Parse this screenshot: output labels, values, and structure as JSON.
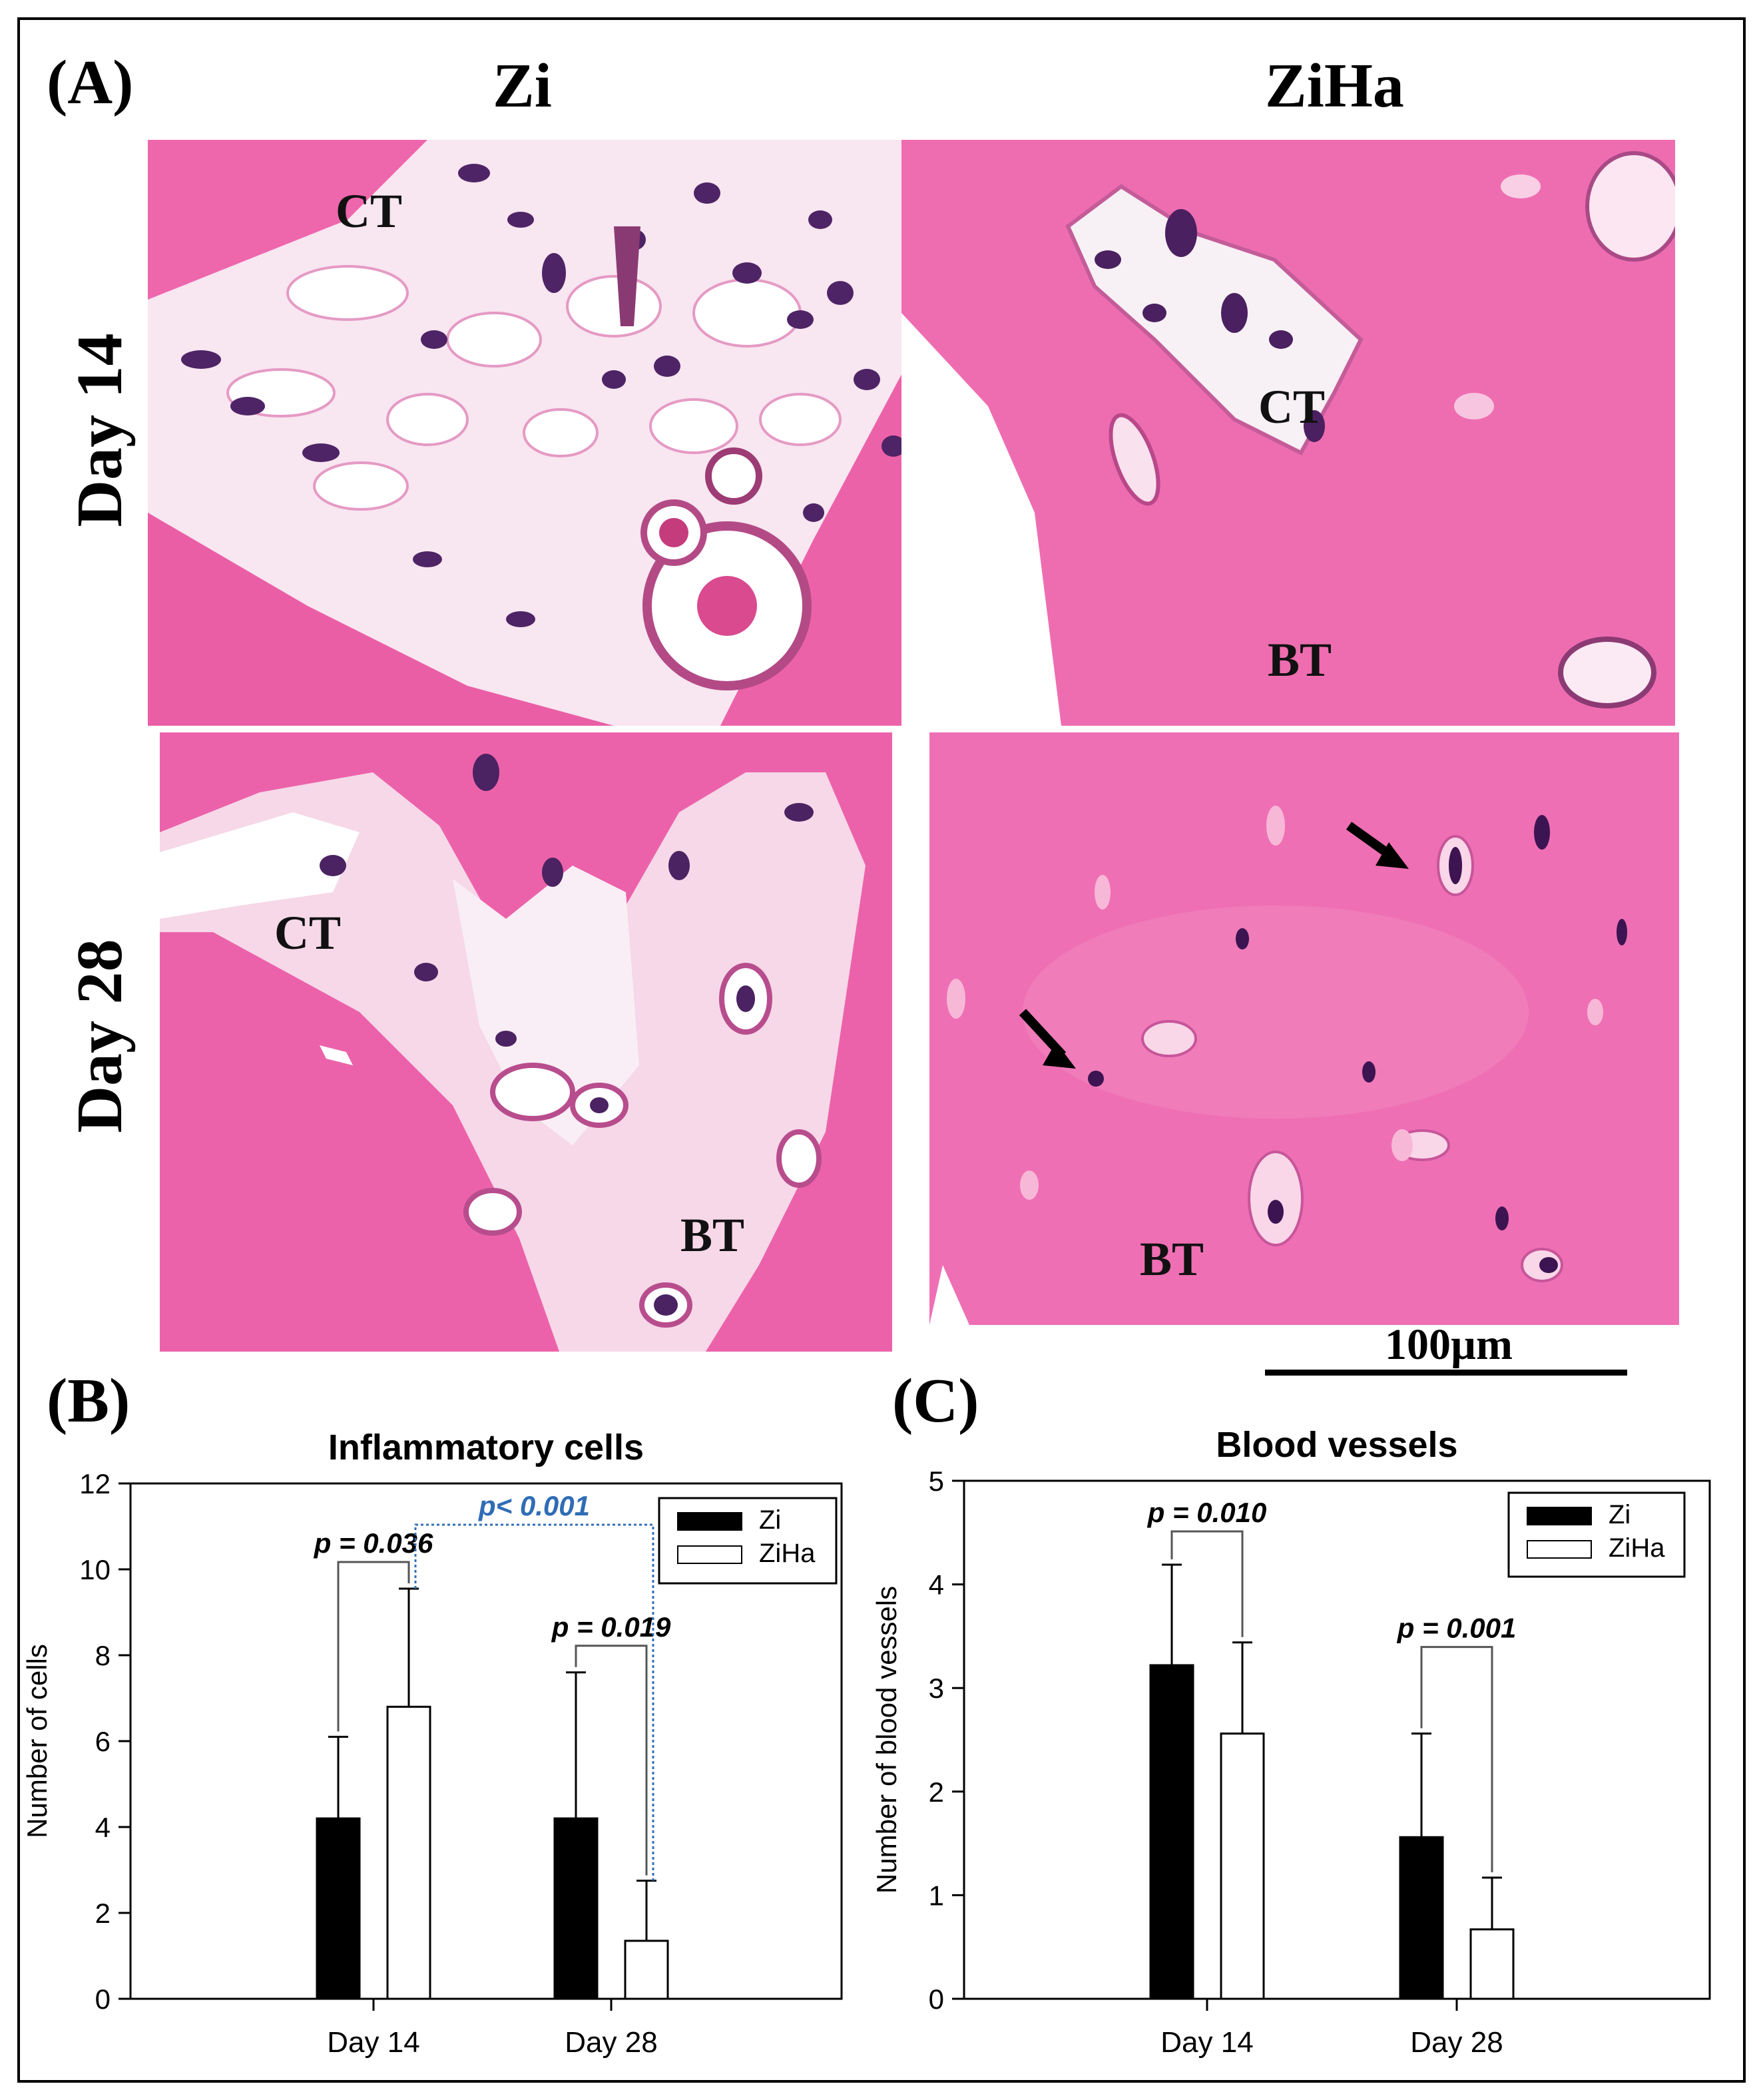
{
  "panel_labels": {
    "a": "(A)",
    "b": "(B)",
    "c": "(C)"
  },
  "columns": [
    "Zi",
    "ZiHa"
  ],
  "rows": [
    "Day 14",
    "Day 28"
  ],
  "micrographs": {
    "zi_day14": {
      "labels": [
        "CT"
      ]
    },
    "ziha_day14": {
      "labels": [
        "CT",
        "BT"
      ]
    },
    "zi_day28": {
      "labels": [
        "CT",
        "BT"
      ]
    },
    "ziha_day28": {
      "labels": [
        "BT"
      ]
    }
  },
  "scale_bar": "100µm",
  "colors": {
    "zi": "#000000",
    "ziha": "#ffffff",
    "tissue": "#ef6fb3",
    "nucleus": "#5b2a6e",
    "bracket": "#555555",
    "highlight": "#2f6db5"
  },
  "chart_data": [
    {
      "type": "bar",
      "title": "Inflammatory cells",
      "ylabel": "Number of cells",
      "xlabel": "",
      "categories": [
        "Day 14",
        "Day 28"
      ],
      "ylim": [
        0,
        12
      ],
      "yticks": [
        0,
        2,
        4,
        6,
        8,
        10,
        12
      ],
      "series": [
        {
          "name": "Zi",
          "values": [
            4.2,
            4.2
          ],
          "errors": [
            1.9,
            3.4
          ],
          "color": "#000000"
        },
        {
          "name": "ZiHa",
          "values": [
            6.8,
            1.35
          ],
          "errors": [
            2.75,
            1.4
          ],
          "color": "#ffffff"
        }
      ],
      "annotations": [
        {
          "text": "p = 0.036",
          "between": "Day 14 Zi vs Day 14 ZiHa"
        },
        {
          "text": "p = 0.019",
          "between": "Day 28 Zi vs Day 28 ZiHa"
        },
        {
          "text": "p< 0.001",
          "between": "Day 14 ZiHa vs Day 28 ZiHa",
          "color": "#2f6db5"
        }
      ],
      "legend": "top-right",
      "grid": false
    },
    {
      "type": "bar",
      "title": "Blood vessels",
      "ylabel": "Number of blood vessels",
      "xlabel": "",
      "categories": [
        "Day 14",
        "Day 28"
      ],
      "ylim": [
        0,
        5
      ],
      "yticks": [
        0,
        1,
        2,
        3,
        4,
        5
      ],
      "series": [
        {
          "name": "Zi",
          "values": [
            3.22,
            1.56
          ],
          "errors": [
            0.97,
            1.0
          ],
          "color": "#000000"
        },
        {
          "name": "ZiHa",
          "values": [
            2.56,
            0.67
          ],
          "errors": [
            0.88,
            0.5
          ],
          "color": "#ffffff"
        }
      ],
      "annotations": [
        {
          "text": "p = 0.010",
          "between": "Day 14 Zi vs Day 14 ZiHa"
        },
        {
          "text": "p = 0.001",
          "between": "Day 28 Zi vs Day 28 ZiHa"
        }
      ],
      "legend": "top-right",
      "grid": false
    }
  ]
}
